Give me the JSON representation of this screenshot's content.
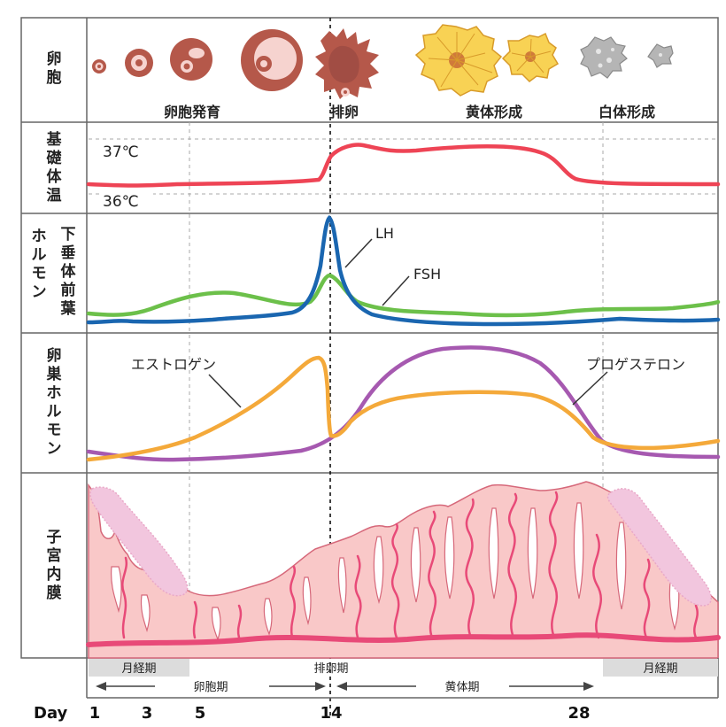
{
  "rows": {
    "follicle": [
      "卵",
      "胞"
    ],
    "temperature": [
      "基",
      "礎",
      "体",
      "温"
    ],
    "pituitary_main": [
      "ホ",
      "ル",
      "モ",
      "ン"
    ],
    "pituitary_sub": [
      "下",
      "垂",
      "体",
      "前",
      "葉"
    ],
    "ovarian": [
      "卵",
      "巣",
      "ホ",
      "ル",
      "モ",
      "ン"
    ],
    "endometrium": [
      "子",
      "宮",
      "内",
      "膜"
    ]
  },
  "follicle_phases": {
    "development": "卵胞発育",
    "ovulation": "排卵",
    "corpus_luteum": "黄体形成",
    "corpus_albicans": "白体形成"
  },
  "temperature": {
    "high_label": "37℃",
    "low_label": "36℃"
  },
  "hormones": {
    "lh": {
      "label": "LH",
      "color": "#1a66b0"
    },
    "fsh": {
      "label": "FSH",
      "color": "#6cc04a"
    },
    "estrogen": {
      "label": "エストロゲン",
      "color": "#f4a93a"
    },
    "progesterone": {
      "label": "プロゲステロン",
      "color": "#a659b0"
    },
    "temperature_color": "#ee4455"
  },
  "phase_bar": {
    "menstruation_start": "月経期",
    "ovulation_period": "排卵期",
    "menstruation_end": "月経期",
    "follicular_phase": "卵胞期",
    "luteal_phase": "黄体期"
  },
  "axis": {
    "label": "Day",
    "ticks": [
      "1",
      "3",
      "5",
      "14",
      "28"
    ]
  },
  "colors": {
    "follicle_brown": "#b5584a",
    "corpus_yellow": "#f8d254",
    "endometrium_fill": "#f9c8c8",
    "endometrium_line": "#e84a78",
    "grid": "#999999"
  }
}
